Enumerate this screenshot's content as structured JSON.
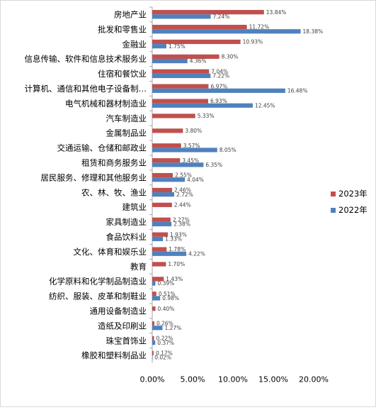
{
  "chart_data": {
    "type": "bar",
    "orientation": "horizontal",
    "categories": [
      "房地产业",
      "批发和零售业",
      "金融业",
      "信息传输、软件和信息技术服务业",
      "住宿和餐饮业",
      "计算机、通信和其他电子设备制…",
      "电气机械和器材制造业",
      "汽车制造业",
      "金属制品业",
      "交通运输、仓储和邮政业",
      "租赁和商务服务业",
      "居民服务、修理和其他服务业",
      "农、林、牧、渔业",
      "建筑业",
      "家具制造业",
      "食品饮料业",
      "文化、体育和娱乐业",
      "教育",
      "化学原料和化学制品制造业",
      "纺织、服装、皮革和制鞋业",
      "通用设备制造业",
      "造纸及印刷业",
      "珠宝首饰业",
      "橡胶和塑料制品业"
    ],
    "series": [
      {
        "name": "2023年",
        "color": "#c0504d",
        "values": [
          13.84,
          11.72,
          10.93,
          8.3,
          7.04,
          6.97,
          6.93,
          5.33,
          3.8,
          3.57,
          3.45,
          2.55,
          2.46,
          2.44,
          2.27,
          1.93,
          1.78,
          1.7,
          1.43,
          0.51,
          0.4,
          0.26,
          0.22,
          0.17
        ],
        "labels": [
          "13.84%",
          "11.72%",
          "10.93%",
          "8.30%",
          "7.04%",
          "6.97%",
          "6.93%",
          "5.33%",
          "3.80%",
          "3.57%",
          "3.45%",
          "2.55%",
          "2.46%",
          "2.44%",
          "2.27%",
          "1.93%",
          "1.78%",
          "1.70%",
          "1.43%",
          "0.51%",
          "0.40%",
          "0.26%",
          "0.22%",
          "0.17%"
        ]
      },
      {
        "name": "2022年",
        "color": "#4f81bd",
        "values": [
          7.24,
          18.38,
          1.75,
          4.36,
          7.22,
          16.48,
          12.45,
          null,
          null,
          8.05,
          6.35,
          4.04,
          2.72,
          null,
          2.38,
          1.33,
          4.22,
          null,
          0.39,
          0.98,
          null,
          1.27,
          0.37,
          0.02
        ],
        "labels": [
          "7.24%",
          "18.38%",
          "1.75%",
          "4.36%",
          "7.22%",
          "16.48%",
          "12.45%",
          null,
          null,
          "8.05%",
          "6.35%",
          "4.04%",
          "2.72%",
          null,
          "2.38%",
          "1.33%",
          "4.22%",
          null,
          "0.39%",
          "0.98%",
          null,
          "1.27%",
          "0.37%",
          "0.02%"
        ]
      }
    ],
    "xlim": [
      0,
      20
    ],
    "xticks": [
      "0.00%",
      "5.00%",
      "10.00%",
      "15.00%",
      "20.00%"
    ],
    "grid": false,
    "legend_position": "right",
    "legend": [
      "2023年",
      "2022年"
    ]
  }
}
